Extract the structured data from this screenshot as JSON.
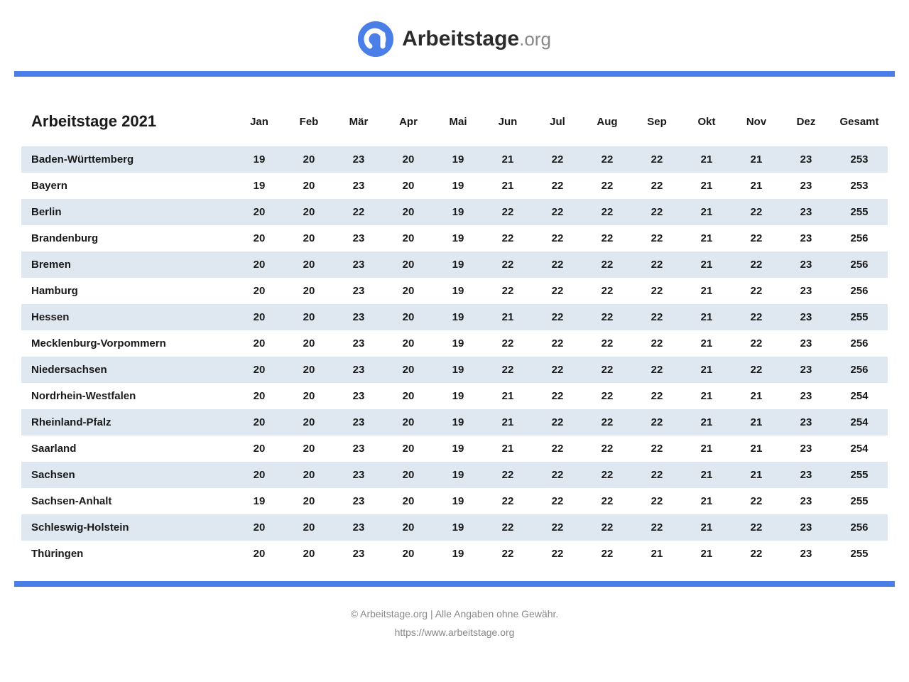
{
  "brand": {
    "name": "Arbeitstage",
    "tld": ".org"
  },
  "colors": {
    "accent": "#4a7fe8",
    "row_alt": "#dfe8f0",
    "text": "#1a1a1a",
    "muted": "#888888",
    "background": "#ffffff"
  },
  "table": {
    "title": "Arbeitstage 2021",
    "columns": [
      "Jan",
      "Feb",
      "Mär",
      "Apr",
      "Mai",
      "Jun",
      "Jul",
      "Aug",
      "Sep",
      "Okt",
      "Nov",
      "Dez",
      "Gesamt"
    ],
    "rows": [
      {
        "state": "Baden-Württemberg",
        "values": [
          19,
          20,
          23,
          20,
          19,
          21,
          22,
          22,
          22,
          21,
          21,
          23,
          253
        ]
      },
      {
        "state": "Bayern",
        "values": [
          19,
          20,
          23,
          20,
          19,
          21,
          22,
          22,
          22,
          21,
          21,
          23,
          253
        ]
      },
      {
        "state": "Berlin",
        "values": [
          20,
          20,
          22,
          20,
          19,
          22,
          22,
          22,
          22,
          21,
          22,
          23,
          255
        ]
      },
      {
        "state": "Brandenburg",
        "values": [
          20,
          20,
          23,
          20,
          19,
          22,
          22,
          22,
          22,
          21,
          22,
          23,
          256
        ]
      },
      {
        "state": "Bremen",
        "values": [
          20,
          20,
          23,
          20,
          19,
          22,
          22,
          22,
          22,
          21,
          22,
          23,
          256
        ]
      },
      {
        "state": "Hamburg",
        "values": [
          20,
          20,
          23,
          20,
          19,
          22,
          22,
          22,
          22,
          21,
          22,
          23,
          256
        ]
      },
      {
        "state": "Hessen",
        "values": [
          20,
          20,
          23,
          20,
          19,
          21,
          22,
          22,
          22,
          21,
          22,
          23,
          255
        ]
      },
      {
        "state": "Mecklenburg-Vorpommern",
        "values": [
          20,
          20,
          23,
          20,
          19,
          22,
          22,
          22,
          22,
          21,
          22,
          23,
          256
        ]
      },
      {
        "state": "Niedersachsen",
        "values": [
          20,
          20,
          23,
          20,
          19,
          22,
          22,
          22,
          22,
          21,
          22,
          23,
          256
        ]
      },
      {
        "state": "Nordrhein-Westfalen",
        "values": [
          20,
          20,
          23,
          20,
          19,
          21,
          22,
          22,
          22,
          21,
          21,
          23,
          254
        ]
      },
      {
        "state": "Rheinland-Pfalz",
        "values": [
          20,
          20,
          23,
          20,
          19,
          21,
          22,
          22,
          22,
          21,
          21,
          23,
          254
        ]
      },
      {
        "state": "Saarland",
        "values": [
          20,
          20,
          23,
          20,
          19,
          21,
          22,
          22,
          22,
          21,
          21,
          23,
          254
        ]
      },
      {
        "state": "Sachsen",
        "values": [
          20,
          20,
          23,
          20,
          19,
          22,
          22,
          22,
          22,
          21,
          21,
          23,
          255
        ]
      },
      {
        "state": "Sachsen-Anhalt",
        "values": [
          19,
          20,
          23,
          20,
          19,
          22,
          22,
          22,
          22,
          21,
          22,
          23,
          255
        ]
      },
      {
        "state": "Schleswig-Holstein",
        "values": [
          20,
          20,
          23,
          20,
          19,
          22,
          22,
          22,
          22,
          21,
          22,
          23,
          256
        ]
      },
      {
        "state": "Thüringen",
        "values": [
          20,
          20,
          23,
          20,
          19,
          22,
          22,
          22,
          21,
          21,
          22,
          23,
          255
        ]
      }
    ],
    "row_alt_color": "#dfe8f0",
    "header_fontsize": 22,
    "cell_fontsize": 15
  },
  "footer": {
    "copyright": "© Arbeitstage.org | Alle Angaben ohne Gewähr.",
    "url": "https://www.arbeitstage.org"
  }
}
